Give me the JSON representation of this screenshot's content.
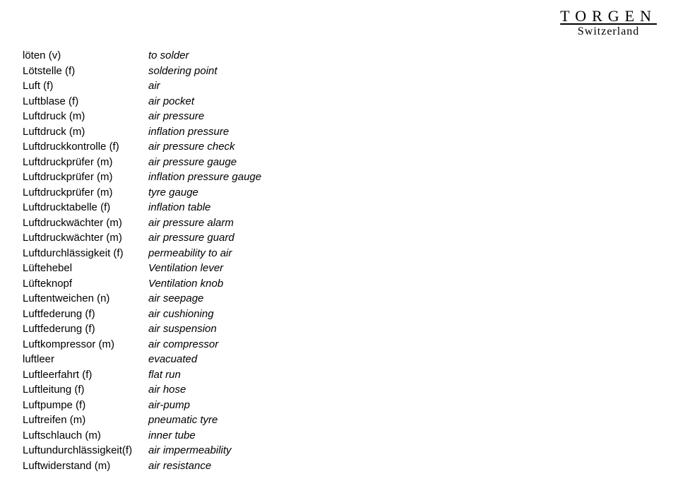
{
  "logo": {
    "main": "TORGEN",
    "sub": "Switzerland"
  },
  "glossary": {
    "rows": [
      {
        "term": "löten (v)",
        "def": "to solder"
      },
      {
        "term": "Lötstelle (f)",
        "def": "soldering point"
      },
      {
        "term": "Luft (f)",
        "def": "air"
      },
      {
        "term": "Luftblase (f)",
        "def": "air pocket"
      },
      {
        "term": "Luftdruck (m)",
        "def": "air pressure"
      },
      {
        "term": "Luftdruck (m)",
        "def": "inflation pressure"
      },
      {
        "term": "Luftdruckkontrolle (f)",
        "def": "air pressure check"
      },
      {
        "term": "Luftdruckprüfer (m)",
        "def": "air pressure gauge"
      },
      {
        "term": "Luftdruckprüfer (m)",
        "def": "inflation pressure gauge"
      },
      {
        "term": "Luftdruckprüfer (m)",
        "def": "tyre gauge"
      },
      {
        "term": "Luftdrucktabelle (f)",
        "def": "inflation table"
      },
      {
        "term": "Luftdruckwächter (m)",
        "def": "air pressure alarm"
      },
      {
        "term": "Luftdruckwächter (m)",
        "def": "air pressure guard"
      },
      {
        "term": "Luftdurchlässigkeit (f)",
        "def": "permeability to air"
      },
      {
        "term": "Lüftehebel",
        "def": "Ventilation lever"
      },
      {
        "term": "Lüfteknopf",
        "def": "Ventilation knob"
      },
      {
        "term": "Luftentweichen (n)",
        "def": "air seepage"
      },
      {
        "term": "Luftfederung (f)",
        "def": "air cushioning"
      },
      {
        "term": "Luftfederung (f)",
        "def": "air suspension"
      },
      {
        "term": "Luftkompressor (m)",
        "def": "air compressor"
      },
      {
        "term": "luftleer",
        "def": "evacuated"
      },
      {
        "term": "Luftleerfahrt (f)",
        "def": "flat run"
      },
      {
        "term": "Luftleitung (f)",
        "def": "air hose"
      },
      {
        "term": "Luftpumpe (f)",
        "def": "air-pump"
      },
      {
        "term": "Luftreifen (m)",
        "def": "pneumatic tyre"
      },
      {
        "term": "Luftschlauch (m)",
        "def": "inner tube"
      },
      {
        "term": "Luftundurchlässigkeit(f)",
        "def": "air impermeability"
      },
      {
        "term": "Luftwiderstand (m)",
        "def": "air resistance"
      }
    ]
  }
}
